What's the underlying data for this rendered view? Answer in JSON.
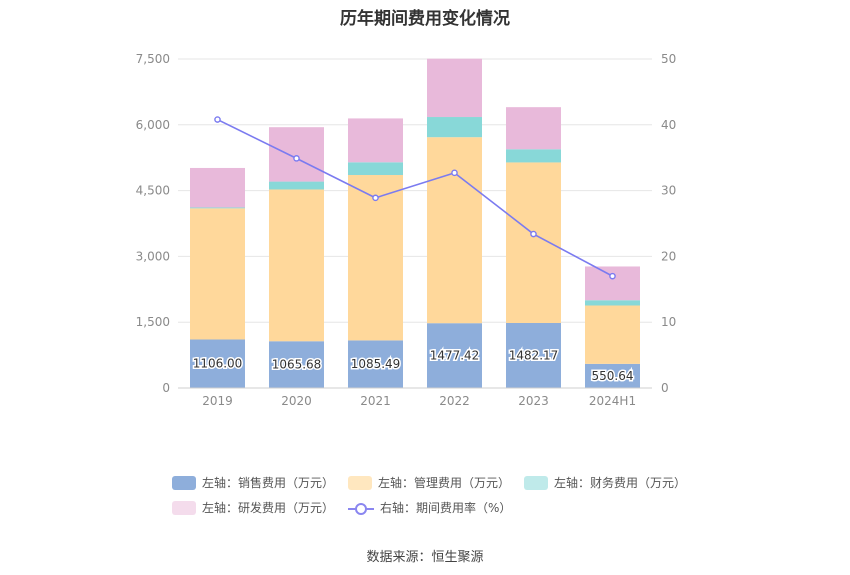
{
  "chart_data": {
    "type": "bar",
    "title": "历年期间费用变化情况",
    "categories": [
      "2019",
      "2020",
      "2021",
      "2022",
      "2023",
      "2024H1"
    ],
    "series": [
      {
        "name": "左轴：销售费用（万元）",
        "axis": "left",
        "type": "bar",
        "color": "#8eaedb",
        "values": [
          1106.0,
          1065.68,
          1085.49,
          1477.42,
          1482.17,
          550.64
        ],
        "labels": [
          "1106.00",
          "1065.68",
          "1085.49",
          "1477.42",
          "1482.17",
          "550.64"
        ]
      },
      {
        "name": "左轴：管理费用（万元）",
        "axis": "left",
        "type": "bar",
        "color": "#ffd89b",
        "values": [
          2990,
          3460,
          3770,
          4240,
          3660,
          1330
        ]
      },
      {
        "name": "左轴：财务费用（万元）",
        "axis": "left",
        "type": "bar",
        "color": "#88d8d8",
        "values": [
          20,
          180,
          290,
          460,
          300,
          120
        ]
      },
      {
        "name": "左轴：研发费用（万元）",
        "axis": "left",
        "type": "bar",
        "color": "#e8b9da",
        "values": [
          900,
          1240,
          1000,
          1330,
          960,
          770
        ]
      },
      {
        "name": "右轴：期间费用率（%）",
        "axis": "right",
        "type": "line",
        "color": "#7b7bf0",
        "values": [
          40.8,
          34.9,
          28.9,
          32.7,
          23.4,
          17.0
        ]
      }
    ],
    "y_left": {
      "min": 0,
      "max": 7500,
      "ticks": [
        0,
        1500,
        3000,
        4500,
        6000,
        7500
      ],
      "tick_labels": [
        "0",
        "1,500",
        "3,000",
        "4,500",
        "6,000",
        "7,500"
      ]
    },
    "y_right": {
      "min": 0,
      "max": 50,
      "ticks": [
        0,
        10,
        20,
        30,
        40,
        50
      ],
      "tick_labels": [
        "0",
        "10",
        "20",
        "30",
        "40",
        "50"
      ]
    },
    "grid": true,
    "legend_position": "bottom"
  },
  "legend": {
    "row1": [
      {
        "label": "左轴：销售费用（万元）",
        "color": "#8eaedb"
      },
      {
        "label": "左轴：管理费用（万元）",
        "color": "#ffe7bf"
      },
      {
        "label": "左轴：财务费用（万元）",
        "color": "#bfeaea"
      }
    ],
    "row2": [
      {
        "label": "左轴：研发费用（万元）",
        "color": "#f4dcec"
      },
      {
        "label": "右轴：期间费用率（%）",
        "color": "#8a86f0",
        "line": true
      }
    ]
  },
  "source": "数据来源：恒生聚源"
}
